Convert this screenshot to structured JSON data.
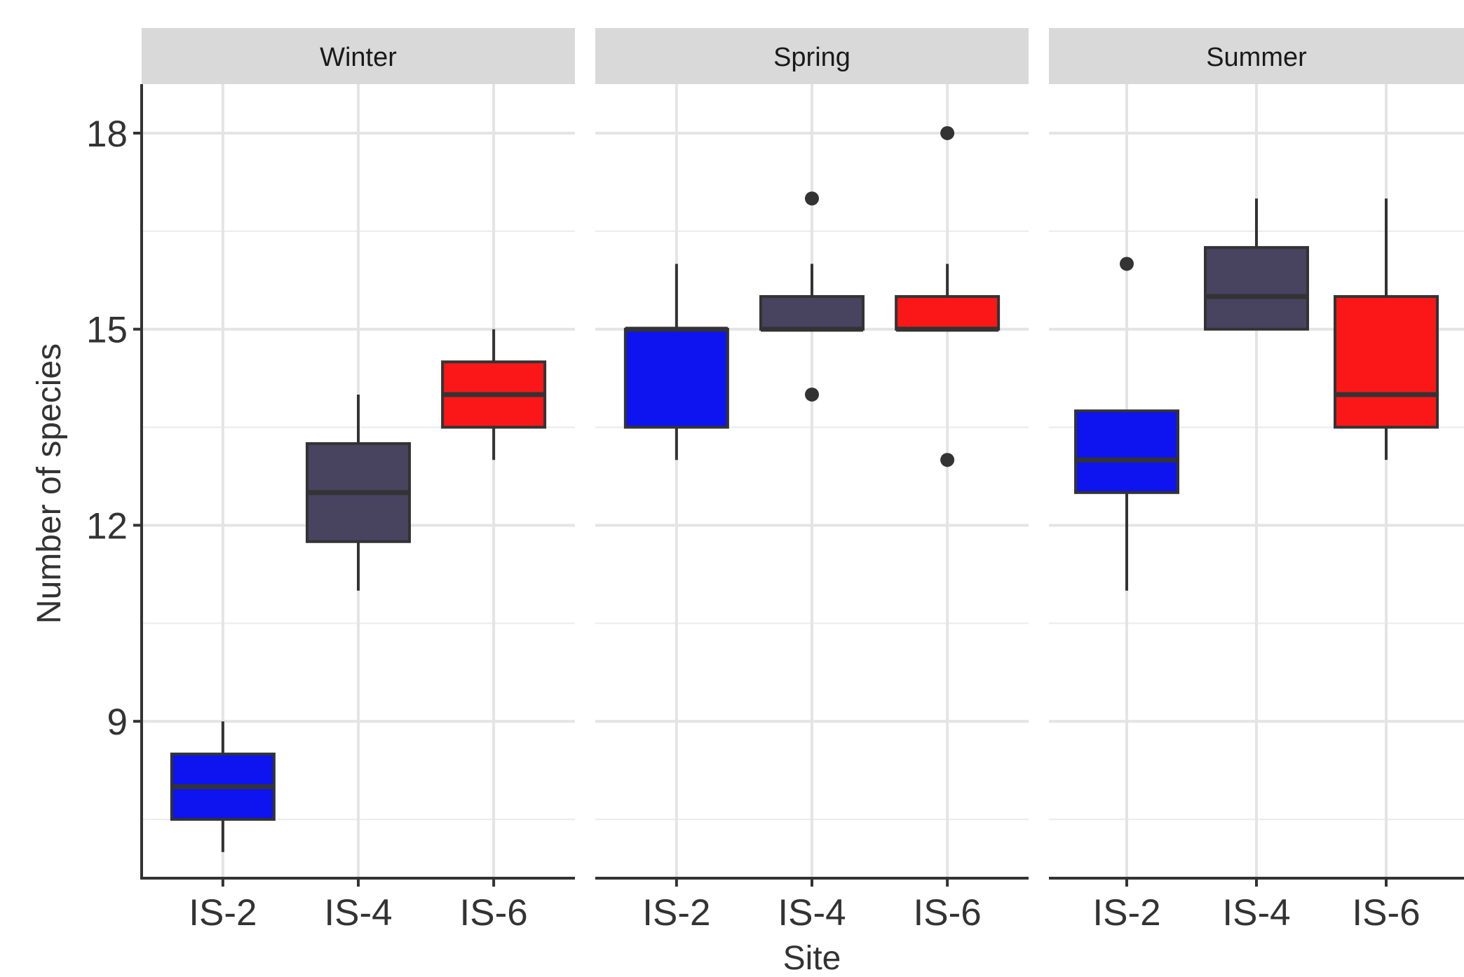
{
  "chart_data": {
    "type": "boxplot",
    "facets": [
      "Winter",
      "Spring",
      "Summer"
    ],
    "categories": [
      "IS-2",
      "IS-4",
      "IS-6"
    ],
    "xlabel": "Site",
    "ylabel": "Number of species",
    "y_ticks": [
      9,
      12,
      15,
      18
    ],
    "y_tick_labels": [
      "9",
      "12",
      "15",
      "18"
    ],
    "ylim": [
      6.6,
      18.75
    ],
    "grid": true,
    "legend": "none",
    "colors": {
      "IS-2": "#0d14f0",
      "IS-4": "#48435f",
      "IS-6": "#fb1717"
    },
    "groups": [
      {
        "facet": "Winter",
        "site": "IS-2",
        "whisker_low": 7,
        "q1": 7.5,
        "median": 8,
        "q3": 8.5,
        "whisker_high": 9,
        "outliers": []
      },
      {
        "facet": "Winter",
        "site": "IS-4",
        "whisker_low": 11,
        "q1": 11.75,
        "median": 12.5,
        "q3": 13.25,
        "whisker_high": 14,
        "outliers": []
      },
      {
        "facet": "Winter",
        "site": "IS-6",
        "whisker_low": 13,
        "q1": 13.5,
        "median": 14,
        "q3": 14.5,
        "whisker_high": 15,
        "outliers": []
      },
      {
        "facet": "Spring",
        "site": "IS-2",
        "whisker_low": 13,
        "q1": 13.5,
        "median": 15,
        "q3": 15,
        "whisker_high": 16,
        "outliers": []
      },
      {
        "facet": "Spring",
        "site": "IS-4",
        "whisker_low": 15,
        "q1": 15,
        "median": 15,
        "q3": 15.5,
        "whisker_high": 16,
        "outliers": [
          14,
          17
        ]
      },
      {
        "facet": "Spring",
        "site": "IS-6",
        "whisker_low": 15,
        "q1": 15,
        "median": 15,
        "q3": 15.5,
        "whisker_high": 16,
        "outliers": [
          13,
          18
        ]
      },
      {
        "facet": "Summer",
        "site": "IS-2",
        "whisker_low": 11,
        "q1": 12.5,
        "median": 13,
        "q3": 13.75,
        "whisker_high": 13.75,
        "outliers": [
          16
        ]
      },
      {
        "facet": "Summer",
        "site": "IS-4",
        "whisker_low": 15,
        "q1": 15,
        "median": 15.5,
        "q3": 16.25,
        "whisker_high": 17,
        "outliers": []
      },
      {
        "facet": "Summer",
        "site": "IS-6",
        "whisker_low": 13,
        "q1": 13.5,
        "median": 14,
        "q3": 15.5,
        "whisker_high": 17,
        "outliers": []
      }
    ]
  }
}
